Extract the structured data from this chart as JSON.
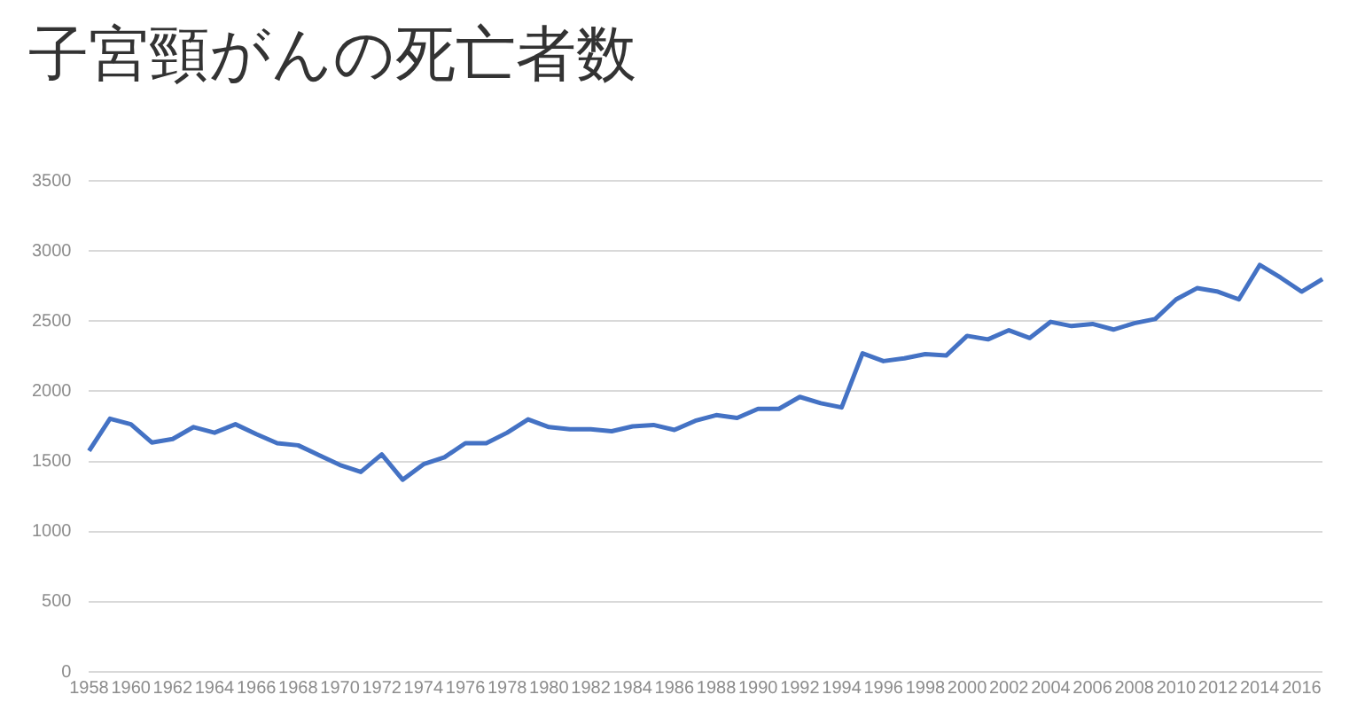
{
  "chart_data": {
    "type": "line",
    "title": "子宮頸がんの死亡者数",
    "categories": [
      "1958",
      null,
      "1960",
      null,
      "1962",
      null,
      "1964",
      null,
      "1966",
      null,
      "1968",
      null,
      "1970",
      null,
      "1972",
      null,
      "1974",
      null,
      "1976",
      null,
      "1978",
      null,
      "1980",
      null,
      "1982",
      null,
      "1984",
      null,
      "1986",
      null,
      "1988",
      null,
      "1990",
      null,
      "1992",
      null,
      "1994",
      null,
      "1996",
      null,
      "1998",
      null,
      "2000",
      null,
      "2002",
      null,
      "2004",
      null,
      "2006",
      null,
      "2008",
      null,
      "2010",
      null,
      "2012",
      null,
      "2014",
      null,
      "2016",
      null
    ],
    "series": [
      {
        "color": "#4472c4",
        "values": [
          1575,
          1805,
          1765,
          1635,
          1660,
          1745,
          1705,
          1765,
          1695,
          1630,
          1615,
          1545,
          1475,
          1425,
          1550,
          1370,
          1480,
          1530,
          1630,
          1630,
          1705,
          1800,
          1745,
          1730,
          1730,
          1715,
          1750,
          1760,
          1725,
          1790,
          1830,
          1810,
          1875,
          1875,
          1960,
          1915,
          1885,
          2270,
          2215,
          2235,
          2265,
          2255,
          2395,
          2370,
          2435,
          2380,
          2495,
          2465,
          2480,
          2440,
          2485,
          2515,
          2655,
          2735,
          2710,
          2655,
          2900,
          2810,
          2710,
          2800
        ]
      }
    ],
    "ylim": [
      0,
      3500
    ],
    "yticks": [
      0,
      500,
      1000,
      1500,
      2000,
      2500,
      3000,
      3500
    ],
    "grid": "y",
    "legend": false,
    "marker": "none",
    "line_style": "solid"
  }
}
